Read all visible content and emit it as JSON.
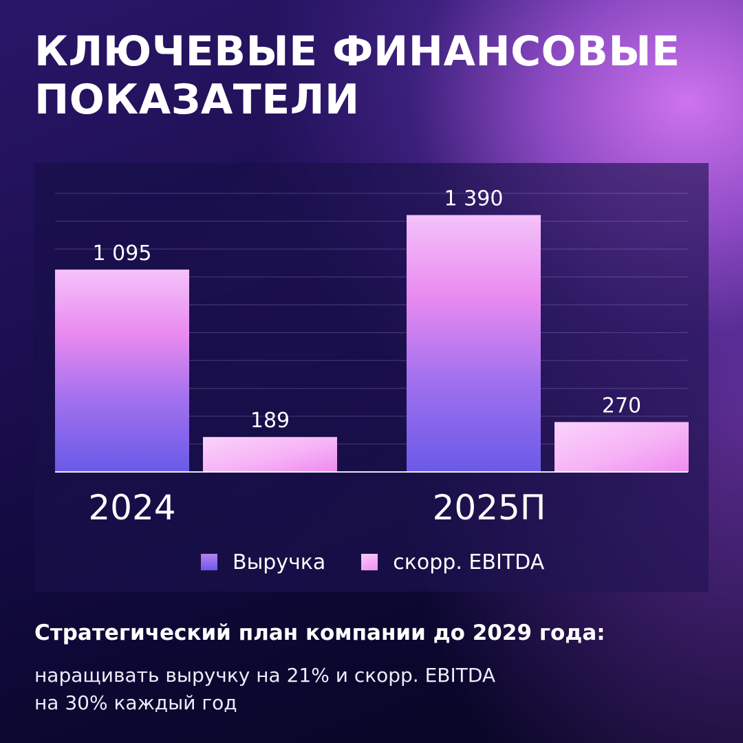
{
  "title": {
    "line1": "КЛЮЧЕВЫЕ ФИНАНСОВЫЕ",
    "line2": "ПОКАЗАТЕЛИ"
  },
  "chart_data": {
    "type": "bar",
    "title": "",
    "xlabel": "",
    "ylabel": "",
    "categories": [
      "2024",
      "2025П"
    ],
    "series": [
      {
        "name": "Выручка",
        "values": [
          1095,
          1390
        ],
        "value_labels": [
          "1 095",
          "1 390"
        ],
        "color": "#8a6cf0"
      },
      {
        "name": "скорр. EBITDA",
        "values": [
          189,
          270
        ],
        "value_labels": [
          "189",
          "270"
        ],
        "color": "#f6b0f6"
      }
    ],
    "ylim": [
      0,
      1500
    ],
    "grid": true,
    "legend": "bottom"
  },
  "strategy": {
    "title": "Стратегический план компании до 2029 года:",
    "line1": "наращивать выручку на 21% и скорр. EBITDA",
    "line2": "на 30% каждый год"
  },
  "colors": {
    "background_top": "#2a1668",
    "background_bottom": "#070522",
    "accent_glow": "#d678f5",
    "revenue_top": "#f2b0f6",
    "revenue_mid": "#e98af0",
    "revenue_bottom": "#6a5ae8",
    "ebitda_light": "#fbd0fb",
    "ebitda_dark": "#ef8cef"
  }
}
